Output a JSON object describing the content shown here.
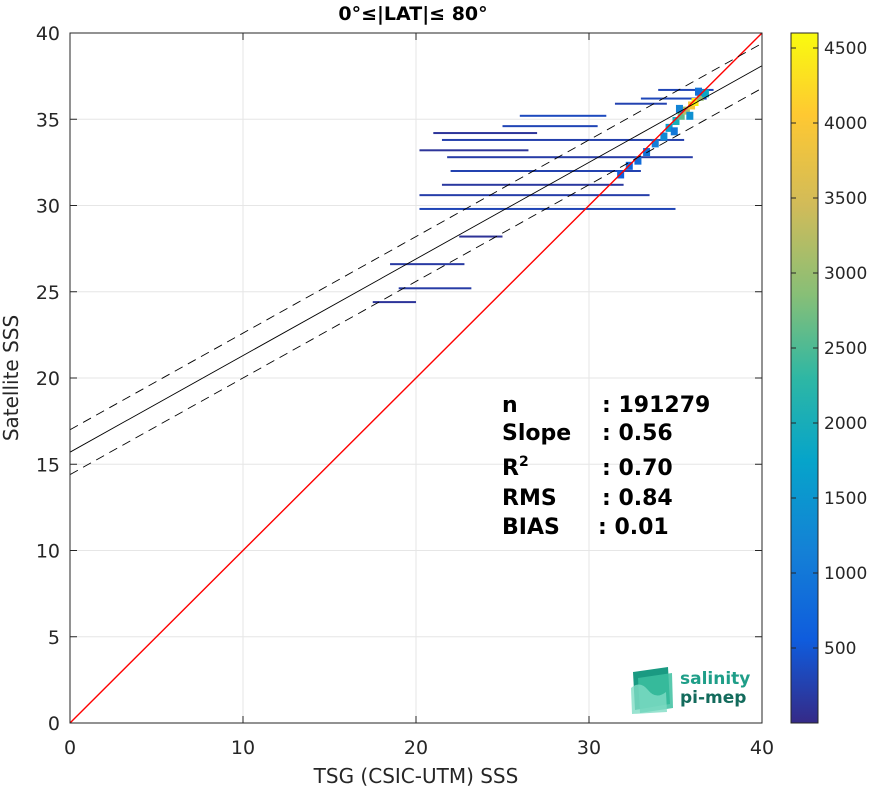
{
  "chart_data": {
    "type": "scatter",
    "title": "0°≤|LAT|≤ 80°",
    "xlabel": "TSG (CSIC-UTM) SSS",
    "ylabel": "Satellite SSS",
    "xlim": [
      0,
      40
    ],
    "ylim": [
      0,
      40
    ],
    "xticks": [
      "0",
      "10",
      "20",
      "30",
      "40"
    ],
    "yticks": [
      "0",
      "5",
      "10",
      "15",
      "20",
      "25",
      "30",
      "35",
      "40"
    ],
    "grid": true,
    "colorbar": {
      "range": [
        0,
        4600
      ],
      "ticks": [
        "500",
        "1000",
        "1500",
        "2000",
        "2500",
        "3000",
        "3500",
        "4000",
        "4500"
      ],
      "colormap": "parula"
    },
    "lines": [
      {
        "role": "identity",
        "color": "#ff0000",
        "x": [
          0,
          40
        ],
        "y": [
          0,
          40
        ]
      },
      {
        "role": "fit",
        "color": "#000000",
        "style": "solid",
        "x": [
          0,
          40
        ],
        "y": [
          15.7,
          38.1
        ]
      },
      {
        "role": "fit-upper",
        "color": "#000000",
        "style": "dashed",
        "x": [
          0,
          40
        ],
        "y": [
          17.0,
          39.4
        ]
      },
      {
        "role": "fit-lower",
        "color": "#000000",
        "style": "dashed",
        "x": [
          0,
          40
        ],
        "y": [
          14.4,
          36.8
        ]
      }
    ],
    "density_segments": [
      {
        "x1": 17.5,
        "x2": 20.0,
        "y": 24.4,
        "density": 120
      },
      {
        "x1": 19.0,
        "x2": 23.2,
        "y": 25.2,
        "density": 200
      },
      {
        "x1": 18.5,
        "x2": 22.8,
        "y": 26.6,
        "density": 180
      },
      {
        "x1": 22.5,
        "x2": 25.0,
        "y": 28.2,
        "density": 100
      },
      {
        "x1": 20.2,
        "x2": 35.0,
        "y": 29.8,
        "density": 300
      },
      {
        "x1": 20.2,
        "x2": 33.5,
        "y": 30.6,
        "density": 220
      },
      {
        "x1": 21.5,
        "x2": 32.0,
        "y": 31.2,
        "density": 160
      },
      {
        "x1": 22.0,
        "x2": 33.0,
        "y": 32.0,
        "density": 260
      },
      {
        "x1": 21.8,
        "x2": 36.0,
        "y": 32.8,
        "density": 200
      },
      {
        "x1": 20.2,
        "x2": 26.5,
        "y": 33.2,
        "density": 120
      },
      {
        "x1": 21.5,
        "x2": 35.5,
        "y": 33.8,
        "density": 240
      },
      {
        "x1": 21.0,
        "x2": 27.0,
        "y": 34.2,
        "density": 120
      },
      {
        "x1": 25.0,
        "x2": 30.5,
        "y": 34.6,
        "density": 300
      },
      {
        "x1": 26.0,
        "x2": 31.0,
        "y": 35.2,
        "density": 350
      },
      {
        "x1": 31.5,
        "x2": 34.5,
        "y": 35.9,
        "density": 260
      },
      {
        "x1": 33.0,
        "x2": 36.8,
        "y": 36.2,
        "density": 320
      },
      {
        "x1": 34.0,
        "x2": 37.2,
        "y": 36.7,
        "density": 300
      }
    ],
    "density_cells": [
      {
        "x": 31.8,
        "y": 31.8,
        "density": 600
      },
      {
        "x": 32.3,
        "y": 32.3,
        "density": 700
      },
      {
        "x": 32.8,
        "y": 32.6,
        "density": 800
      },
      {
        "x": 33.3,
        "y": 33.1,
        "density": 900
      },
      {
        "x": 33.8,
        "y": 33.6,
        "density": 1100
      },
      {
        "x": 34.3,
        "y": 34.0,
        "density": 1300
      },
      {
        "x": 34.6,
        "y": 34.5,
        "density": 1600
      },
      {
        "x": 35.0,
        "y": 34.9,
        "density": 2000
      },
      {
        "x": 35.3,
        "y": 35.2,
        "density": 2600
      },
      {
        "x": 35.6,
        "y": 35.5,
        "density": 3200
      },
      {
        "x": 35.9,
        "y": 35.8,
        "density": 4000
      },
      {
        "x": 36.1,
        "y": 36.0,
        "density": 4500
      },
      {
        "x": 36.4,
        "y": 36.3,
        "density": 3000
      },
      {
        "x": 36.7,
        "y": 36.5,
        "density": 1800
      },
      {
        "x": 35.2,
        "y": 35.6,
        "density": 1200
      },
      {
        "x": 35.8,
        "y": 35.2,
        "density": 1400
      },
      {
        "x": 36.3,
        "y": 36.6,
        "density": 900
      },
      {
        "x": 34.9,
        "y": 34.3,
        "density": 1000
      }
    ],
    "stats": [
      {
        "label": "n",
        "value": ": 191279"
      },
      {
        "label": "Slope",
        "value": ": 0.56"
      },
      {
        "label": "R",
        "sup": "2",
        "value": ": 0.70"
      },
      {
        "label": "RMS",
        "value": ": 0.84"
      },
      {
        "label": "BIAS",
        "value": ": 0.01"
      }
    ]
  },
  "logo": {
    "line1": "salinity",
    "line2": "pi-mep"
  }
}
